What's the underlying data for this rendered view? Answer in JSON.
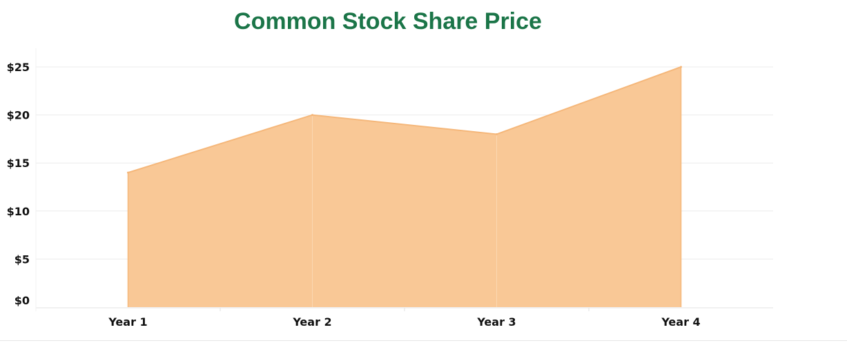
{
  "chart_data": {
    "type": "area",
    "title": "Common Stock Share Price",
    "categories": [
      "Year 1",
      "Year 2",
      "Year 3",
      "Year 4"
    ],
    "values": [
      14,
      20,
      18,
      25
    ],
    "xlabel": "",
    "ylabel": "",
    "ylim": [
      0,
      25
    ],
    "yticks": [
      0,
      5,
      10,
      15,
      20,
      25
    ],
    "ytick_labels": [
      "$0",
      "$5",
      "$10",
      "$15",
      "$20",
      "$25"
    ],
    "grid": true,
    "legend": "none",
    "fill_color": "#f9c896",
    "line_color": "#f5b77a",
    "title_color": "#1b7548"
  }
}
